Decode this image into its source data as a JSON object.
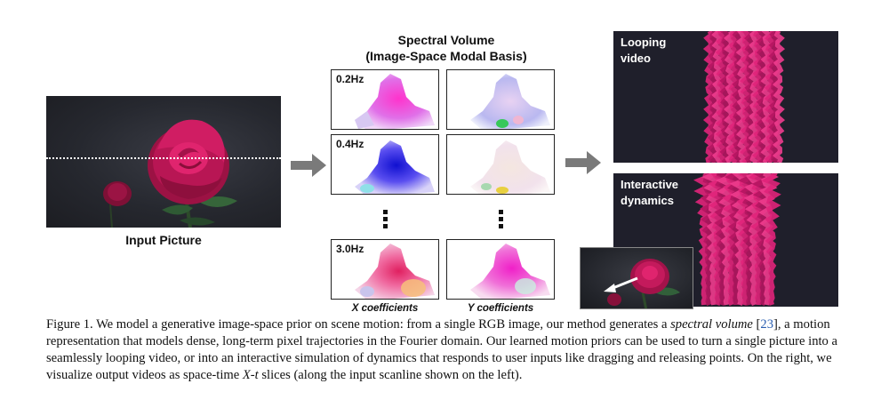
{
  "input": {
    "label": "Input Picture"
  },
  "spectral_volume": {
    "title_line1": "Spectral Volume",
    "title_line2": "(Image-Space Modal Basis)",
    "frequencies": [
      "0.2Hz",
      "0.4Hz",
      "3.0Hz"
    ],
    "x_caption": "X coefficients",
    "y_caption": "Y coefficients",
    "ellipsis": "⋮"
  },
  "outputs": {
    "looping": {
      "line1": "Looping",
      "line2": "video"
    },
    "interactive": {
      "line1": "Interactive",
      "line2": "dynamics"
    }
  },
  "caption": {
    "prefix": "Figure 1.  We model a generative image-space prior on scene motion: from a single RGB image, our method generates a ",
    "italic_term": "spectral volume",
    "ref_open": " [",
    "ref_num": "23",
    "ref_close": "],",
    "middle": " a motion representation that models dense, long-term pixel trajectories in the Fourier domain. Our learned motion priors can be used to turn a single picture into a seamlessly looping video, or into an interactive simulation of dynamics that responds to user inputs like dragging and releasing points. On the right, we visualize output videos as space-time ",
    "math_xt": "X-t",
    "suffix": " slices (along the input scanline shown on the left)."
  },
  "colors": {
    "rose": "#c2185b",
    "panel_bg": "#1f1f2b",
    "arrow": "#7a7a7a",
    "ref_link": "#2a5db0"
  }
}
